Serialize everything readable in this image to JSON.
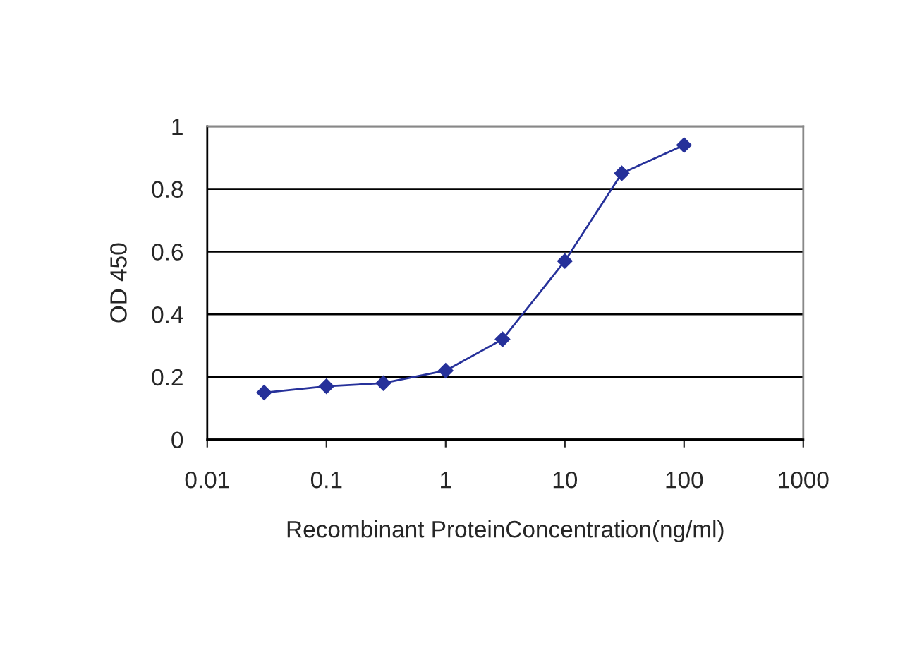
{
  "chart_data": {
    "type": "line",
    "xlabel": "Recombinant ProteinConcentration(ng/ml)",
    "ylabel": "OD 450",
    "x": [
      0.03,
      0.1,
      0.3,
      1,
      3,
      10,
      30,
      100
    ],
    "series": [
      {
        "color": "#26319a",
        "values": [
          0.15,
          0.17,
          0.18,
          0.22,
          0.32,
          0.57,
          0.85,
          0.94
        ]
      }
    ],
    "log": "x",
    "xlim": [
      0.01,
      1000
    ],
    "xticks": [
      0.01,
      0.1,
      1,
      10,
      100,
      1000
    ],
    "ylim": [
      0,
      1
    ],
    "yticks": [
      0,
      0.2,
      0.4,
      0.6,
      0.8,
      1
    ],
    "grid": "y",
    "marker": "diamond",
    "line_style": "solid"
  }
}
